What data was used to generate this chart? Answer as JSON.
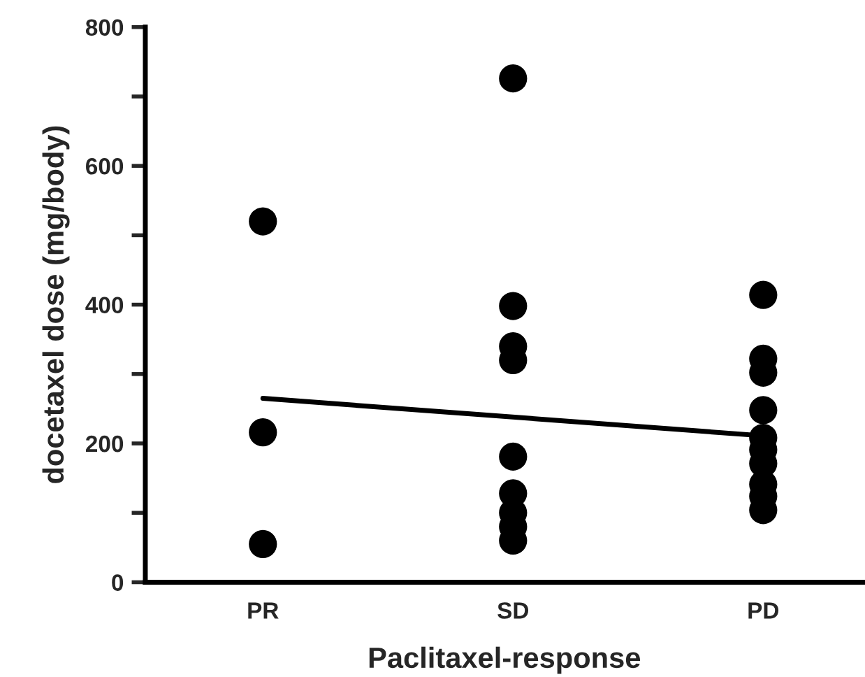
{
  "chart_data": {
    "type": "scatter",
    "xlabel": "Paclitaxel-response",
    "ylabel": "docetaxel dose (mg/body)",
    "categories": [
      "PR",
      "SD",
      "PD"
    ],
    "series": [
      {
        "color": "#000000",
        "marker": "circle",
        "x": [
          "PR",
          "PR",
          "PR",
          "SD",
          "SD",
          "SD",
          "SD",
          "SD",
          "SD",
          "SD",
          "SD",
          "SD",
          "PD",
          "PD",
          "PD",
          "PD",
          "PD",
          "PD",
          "PD",
          "PD",
          "PD",
          "PD"
        ],
        "values": [
          520,
          216,
          55,
          726,
          398,
          340,
          320,
          181,
          128,
          100,
          80,
          60,
          414,
          322,
          302,
          248,
          208,
          191,
          171,
          141,
          124,
          104
        ]
      },
      {
        "type": "line",
        "color": "#000000",
        "marker": "none",
        "line_style": "solid",
        "x": [
          "PR",
          "PD"
        ],
        "values": [
          265,
          211
        ]
      }
    ],
    "ylim": [
      0,
      800
    ],
    "yticks": [
      0,
      {
        "value": 100,
        "label": null
      },
      200,
      {
        "value": 300,
        "label": null
      },
      400,
      {
        "value": 500,
        "label": null
      },
      600,
      {
        "value": 700,
        "label": null
      },
      800
    ],
    "grid": false,
    "legend": false
  }
}
